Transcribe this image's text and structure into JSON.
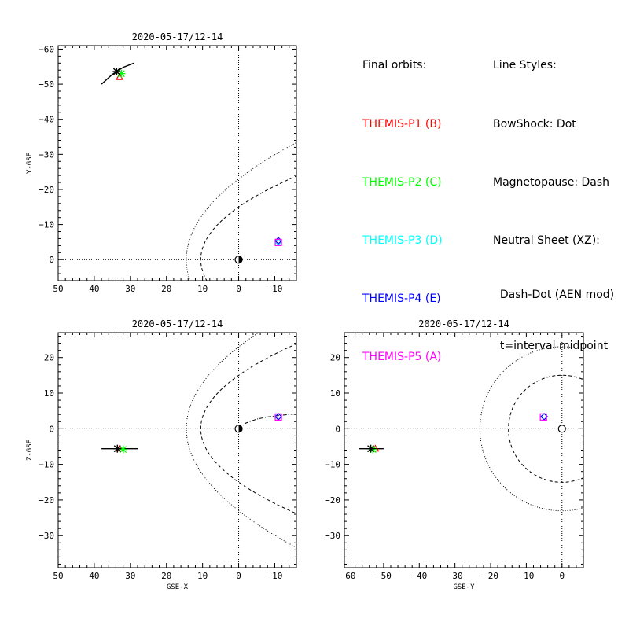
{
  "colors": {
    "P1": "#ff0000",
    "P2": "#00ff00",
    "P3": "#00ffff",
    "P4": "#0000ff",
    "P5": "#ff00ff"
  },
  "legend": {
    "orbits_header": "Final orbits:",
    "orbits": [
      {
        "label": "THEMIS-P1 (B)",
        "color": "#ff0000"
      },
      {
        "label": "THEMIS-P2 (C)",
        "color": "#00ff00"
      },
      {
        "label": "THEMIS-P3 (D)",
        "color": "#00ffff"
      },
      {
        "label": "THEMIS-P4 (E)",
        "color": "#0000ff"
      },
      {
        "label": "THEMIS-P5 (A)",
        "color": "#ff00ff"
      }
    ],
    "styles_header": "Line Styles:",
    "styles": [
      "BowShock: Dot",
      "Magnetopause: Dash",
      "Neutral Sheet (XZ):",
      "  Dash-Dot (AEN mod)",
      "  t=interval midpoint"
    ]
  },
  "chart_data": [
    {
      "type": "line",
      "title": "2020-05-17/12-14",
      "xlabel": "",
      "ylabel": "Y-GSE",
      "xlim": [
        50,
        -16
      ],
      "ylim": [
        6,
        -61
      ],
      "xticks": [
        50,
        40,
        30,
        20,
        10,
        0,
        -10
      ],
      "yticks": [
        0,
        -10,
        -20,
        -30,
        -40,
        -50,
        -60
      ],
      "earth": [
        0,
        0
      ],
      "bow_shock": {
        "nose": 14.5,
        "flank": 23
      },
      "magnetopause": {
        "nose": 10.5,
        "flank": 15
      },
      "orbit_track": {
        "x": [
          38,
          35,
          32,
          29
        ],
        "y": [
          -50,
          -52.8,
          -54.8,
          -56
        ]
      },
      "probes": [
        {
          "probe": "P1",
          "x": 33,
          "y": -52
        },
        {
          "probe": "P2",
          "x": 32.5,
          "y": -53
        },
        {
          "probe": "P3",
          "x": -11,
          "y": -5
        },
        {
          "probe": "P4",
          "x": -11,
          "y": -5.4
        },
        {
          "probe": "P5",
          "x": -11,
          "y": -4.9
        }
      ],
      "track_end": {
        "x": 33.8,
        "y": -53.6
      }
    },
    {
      "type": "line",
      "title": "2020-05-17/12-14",
      "xlabel": "GSE-X",
      "ylabel": "Z-GSE",
      "xlim": [
        50,
        -16
      ],
      "ylim": [
        -39,
        27
      ],
      "xticks": [
        50,
        40,
        30,
        20,
        10,
        0,
        -10
      ],
      "yticks": [
        20,
        10,
        0,
        -10,
        -20,
        -30
      ],
      "earth": [
        0,
        0
      ],
      "bow_shock": {
        "nose": 14.5,
        "flank": 23
      },
      "magnetopause": {
        "nose": 10.5,
        "flank": 15
      },
      "neutral_sheet": {
        "x": [
          0,
          -2,
          -5,
          -8,
          -11,
          -16
        ],
        "y": [
          0,
          1.6,
          2.7,
          3.3,
          3.7,
          4.2
        ]
      },
      "orbit_track": {
        "x": [
          38,
          28
        ],
        "y": [
          -5.6,
          -5.6
        ]
      },
      "probes": [
        {
          "probe": "P1",
          "x": 33,
          "y": -5.6
        },
        {
          "probe": "P2",
          "x": 32,
          "y": -5.8
        },
        {
          "probe": "P3",
          "x": -11,
          "y": 3.4
        },
        {
          "probe": "P4",
          "x": -11,
          "y": 3.4
        },
        {
          "probe": "P5",
          "x": -11,
          "y": 3.3
        }
      ],
      "track_end": {
        "x": 33.6,
        "y": -5.6
      }
    },
    {
      "type": "line",
      "title": "2020-05-17/12-14",
      "xlabel": "GSE-Y",
      "ylabel": "",
      "xlim": [
        -61,
        6
      ],
      "ylim": [
        -39,
        27
      ],
      "xticks": [
        -60,
        -50,
        -40,
        -30,
        -20,
        -10,
        0
      ],
      "yticks": [
        20,
        10,
        0,
        -10,
        -20,
        -30
      ],
      "earth": [
        0,
        0
      ],
      "bow_shock": {
        "nose": 14.5,
        "flank": 23
      },
      "magnetopause": {
        "nose": 10.5,
        "flank": 15
      },
      "orbit_track": {
        "x": [
          -57,
          -50
        ],
        "y": [
          -5.6,
          -5.6
        ]
      },
      "probes": [
        {
          "probe": "P1",
          "x": -52.3,
          "y": -5.6
        },
        {
          "probe": "P2",
          "x": -53,
          "y": -5.8
        },
        {
          "probe": "P3",
          "x": -5,
          "y": 3.4
        },
        {
          "probe": "P4",
          "x": -5,
          "y": 3.4
        },
        {
          "probe": "P5",
          "x": -5.2,
          "y": 3.3
        }
      ],
      "track_end": {
        "x": -53.6,
        "y": -5.6
      }
    }
  ]
}
